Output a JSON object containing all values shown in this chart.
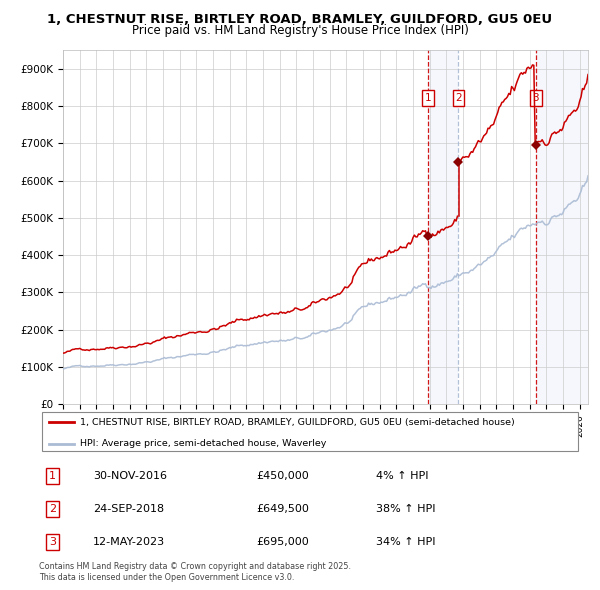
{
  "title_line1": "1, CHESTNUT RISE, BIRTLEY ROAD, BRAMLEY, GUILDFORD, GU5 0EU",
  "title_line2": "Price paid vs. HM Land Registry's House Price Index (HPI)",
  "background_color": "#ffffff",
  "plot_bg_color": "#ffffff",
  "grid_color": "#cccccc",
  "hpi_color": "#aabbd4",
  "price_color": "#cc0000",
  "sale_marker_color": "#8b0000",
  "vline_color_red": "#cc0000",
  "vline_color_blue": "#aabbd4",
  "shade_color": "#ddeeff",
  "legend_label1": "1, CHESTNUT RISE, BIRTLEY ROAD, BRAMLEY, GUILDFORD, GU5 0EU (semi-detached house)",
  "legend_label2": "HPI: Average price, semi-detached house, Waverley",
  "sale1_date": 2016.92,
  "sale1_price": 450000,
  "sale2_date": 2018.73,
  "sale2_price": 649500,
  "sale3_date": 2023.36,
  "sale3_price": 695000,
  "table_data": [
    [
      "1",
      "30-NOV-2016",
      "£450,000",
      "4% ↑ HPI"
    ],
    [
      "2",
      "24-SEP-2018",
      "£649,500",
      "38% ↑ HPI"
    ],
    [
      "3",
      "12-MAY-2023",
      "£695,000",
      "34% ↑ HPI"
    ]
  ],
  "footnote": "Contains HM Land Registry data © Crown copyright and database right 2025.\nThis data is licensed under the Open Government Licence v3.0.",
  "xmin": 1995.0,
  "xmax": 2026.5,
  "ymin": 0,
  "ymax": 950000,
  "yticks": [
    0,
    100000,
    200000,
    300000,
    400000,
    500000,
    600000,
    700000,
    800000,
    900000
  ],
  "ytick_labels": [
    "£0",
    "£100K",
    "£200K",
    "£300K",
    "£400K",
    "£500K",
    "£600K",
    "£700K",
    "£800K",
    "£900K"
  ]
}
